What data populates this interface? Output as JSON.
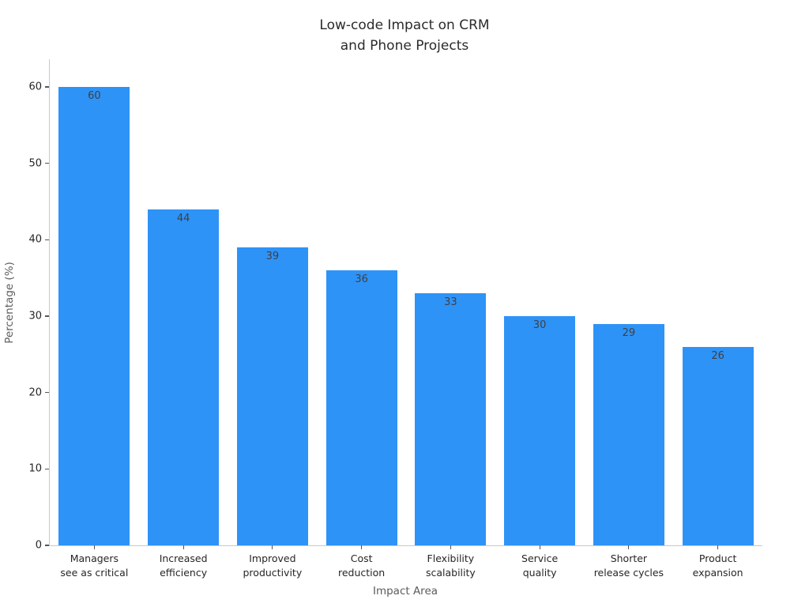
{
  "chart_data": {
    "type": "bar",
    "title": "Low-code Impact on CRM\nand Phone Projects",
    "xlabel": "Impact Area",
    "ylabel": "Percentage (%)",
    "categories": [
      "Managers\nsee as critical",
      "Increased\nefficiency",
      "Improved\nproductivity",
      "Cost\nreduction",
      "Flexibility\nscalability",
      "Service\nquality",
      "Shorter\nrelease cycles",
      "Product\nexpansion"
    ],
    "values": [
      60,
      44,
      39,
      36,
      33,
      30,
      29,
      26
    ],
    "value_labels": [
      "60",
      "44",
      "39",
      "36",
      "33",
      "30",
      "29",
      "26"
    ],
    "yticks": [
      0,
      10,
      20,
      30,
      40,
      50,
      60
    ],
    "ylim": [
      0,
      63.62
    ],
    "bar_color": "#2e93f7",
    "value_label_color": "#404040",
    "axis_color": "#c9c9c9",
    "tick_color": "#555555",
    "grid": false,
    "legend": null
  }
}
